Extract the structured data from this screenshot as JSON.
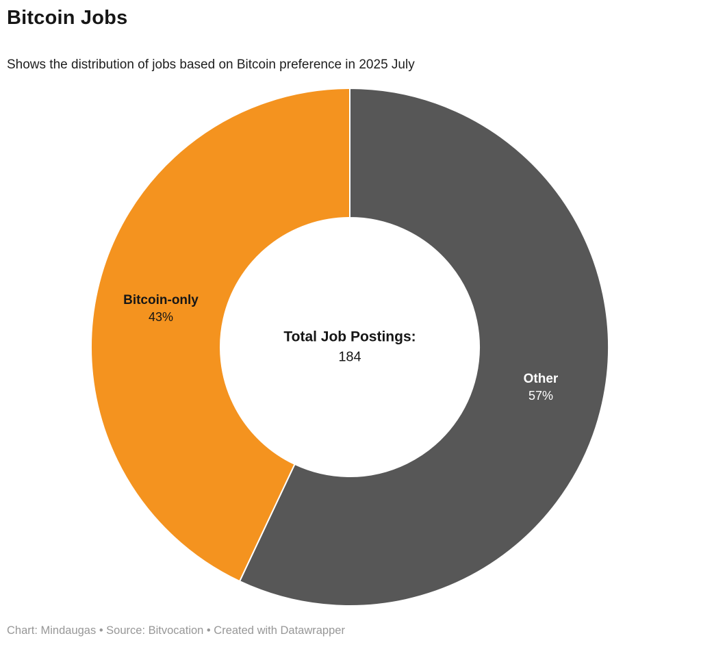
{
  "header": {
    "title": "Bitcoin Jobs",
    "subtitle": "Shows the distribution of jobs based on Bitcoin preference in 2025 July"
  },
  "chart_data": {
    "type": "pie",
    "donut": true,
    "title": "Bitcoin Jobs",
    "subtitle": "Shows the distribution of jobs based on Bitcoin preference in 2025 July",
    "categories": [
      "Other",
      "Bitcoin-only"
    ],
    "values": [
      57,
      43
    ],
    "unit": "%",
    "start_at_top": true,
    "clockwise": true,
    "inner_radius_ratio": 0.5,
    "total_label": "Total Job Postings:",
    "total_value": "184",
    "slices": [
      {
        "label": "Other",
        "pct": "57%",
        "value": 57,
        "color": "#575757",
        "label_color": "#ffffff"
      },
      {
        "label": "Bitcoin-only",
        "pct": "43%",
        "value": 43,
        "color": "#F4931F",
        "label_color": "#161616"
      }
    ]
  },
  "footer": {
    "attribution": "Chart: Mindaugas • Source: Bitvocation • Created with Datawrapper"
  }
}
